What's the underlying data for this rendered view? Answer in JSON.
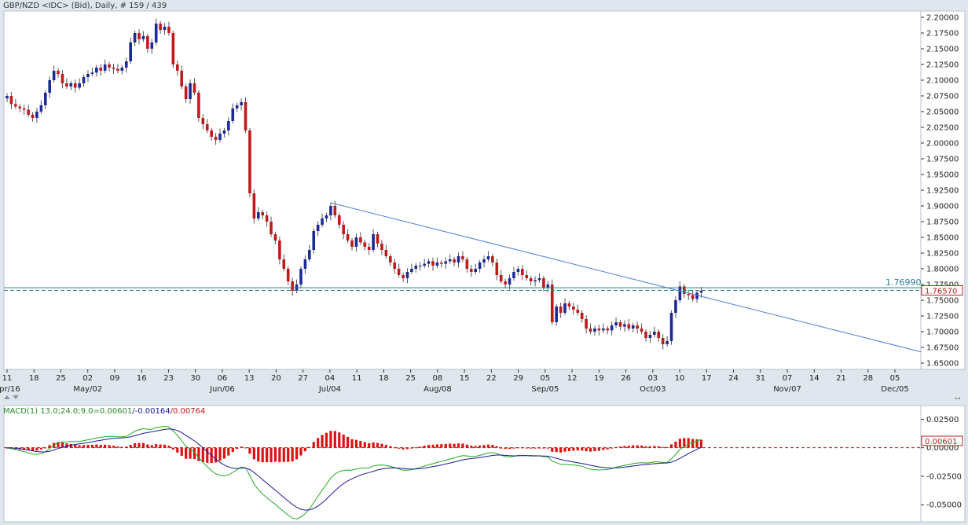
{
  "chart_data": [
    {
      "type": "candlestick",
      "title": "GBP/NZD <IDC> (Bid), Daily, # 159 / 439",
      "ylim": [
        1.64,
        2.21
      ],
      "y_ticks": [
        "2.20000",
        "2.17500",
        "2.15000",
        "2.12500",
        "2.10000",
        "2.07500",
        "2.05000",
        "2.02500",
        "2.00000",
        "1.97500",
        "1.95000",
        "1.92500",
        "1.90000",
        "1.87500",
        "1.85000",
        "1.82500",
        "1.80000",
        "1.77500",
        "1.75000",
        "1.72500",
        "1.70000",
        "1.67500",
        "1.65000"
      ],
      "x_day_labels": [
        "11",
        "18",
        "25",
        "02",
        "09",
        "16",
        "23",
        "30",
        "06",
        "13",
        "20",
        "27",
        "04",
        "11",
        "18",
        "25",
        "08",
        "15",
        "22",
        "29",
        "05",
        "12",
        "19",
        "26",
        "03",
        "10",
        "17",
        "24",
        "31",
        "07",
        "14",
        "21",
        "28",
        "05"
      ],
      "x_month_labels": [
        "Apr/16",
        "May/02",
        "Jun/06",
        "Jul/04",
        "Aug/08",
        "Sep/05",
        "Oct/03",
        "Nov/07",
        "Dec/05"
      ],
      "closes": [
        2.075,
        2.062,
        2.058,
        2.055,
        2.053,
        2.045,
        2.04,
        2.05,
        2.06,
        2.08,
        2.1,
        2.115,
        2.11,
        2.095,
        2.09,
        2.095,
        2.088,
        2.095,
        2.105,
        2.11,
        2.112,
        2.12,
        2.115,
        2.125,
        2.12,
        2.118,
        2.115,
        2.12,
        2.13,
        2.16,
        2.175,
        2.165,
        2.17,
        2.15,
        2.16,
        2.19,
        2.18,
        2.185,
        2.175,
        2.125,
        2.115,
        2.09,
        2.07,
        2.095,
        2.08,
        2.04,
        2.03,
        2.02,
        2.01,
        2.005,
        2.015,
        2.02,
        2.035,
        2.055,
        2.06,
        2.065,
        2.02,
        1.92,
        1.88,
        1.89,
        1.885,
        1.875,
        1.855,
        1.845,
        1.815,
        1.8,
        1.78,
        1.765,
        1.775,
        1.8,
        1.815,
        1.83,
        1.86,
        1.87,
        1.88,
        1.885,
        1.9,
        1.885,
        1.87,
        1.855,
        1.845,
        1.835,
        1.85,
        1.842,
        1.835,
        1.83,
        1.855,
        1.84,
        1.83,
        1.82,
        1.81,
        1.8,
        1.79,
        1.785,
        1.795,
        1.8,
        1.805,
        1.805,
        1.808,
        1.812,
        1.805,
        1.81,
        1.808,
        1.812,
        1.815,
        1.81,
        1.82,
        1.815,
        1.8,
        1.795,
        1.8,
        1.81,
        1.815,
        1.82,
        1.81,
        1.79,
        1.78,
        1.775,
        1.785,
        1.795,
        1.8,
        1.79,
        1.785,
        1.78,
        1.782,
        1.785,
        1.77,
        1.775,
        1.715,
        1.74,
        1.73,
        1.745,
        1.74,
        1.735,
        1.73,
        1.72,
        1.705,
        1.7,
        1.705,
        1.702,
        1.705,
        1.702,
        1.71,
        1.715,
        1.708,
        1.712,
        1.705,
        1.71,
        1.705,
        1.7,
        1.69,
        1.695,
        1.7,
        1.69,
        1.68,
        1.685,
        1.73,
        1.75,
        1.772,
        1.76,
        1.758,
        1.752,
        1.762,
        1.765
      ],
      "trendline": {
        "from": {
          "bar": 76,
          "price": 1.905
        },
        "to": {
          "bar": 190,
          "price": 1.71
        }
      },
      "support_line": {
        "price": 1.7699,
        "label": "1.76990"
      },
      "last_price": {
        "price": 1.7657,
        "label": "1.76570"
      }
    },
    {
      "type": "line",
      "title": "MACD(1) 13.0;24.0;9.0=",
      "values_text": [
        "0.00601",
        "/-0.00164",
        "/0.00764"
      ],
      "ylim": [
        -0.065,
        0.037
      ],
      "y_ticks": [
        "0.02500",
        "0.00000",
        "-0.02500",
        "-0.05000"
      ],
      "last_label": "0.00601",
      "series_colors": {
        "macd": "#22aa22",
        "signal": "#1a1a9a",
        "hist": "#dd1111"
      }
    }
  ],
  "colors": {
    "up": "#1c2a99",
    "down": "#c01a1a",
    "trend": "#4f7fd6",
    "support": "#2e7d7d"
  }
}
